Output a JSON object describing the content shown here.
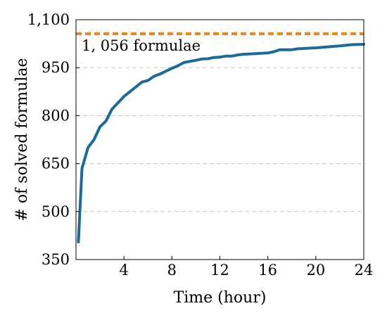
{
  "chart_data": {
    "type": "line",
    "xlabel": "Time (hour)",
    "ylabel": "# of solved formulae",
    "xlim": [
      0,
      24
    ],
    "ylim": [
      350,
      1100
    ],
    "x_ticks": [
      4,
      8,
      12,
      16,
      20,
      24
    ],
    "y_ticks": [
      350,
      500,
      650,
      800,
      950,
      1100
    ],
    "x_tick_labels": [
      "4",
      "8",
      "12",
      "16",
      "20",
      "24"
    ],
    "y_tick_labels": [
      "350",
      "500",
      "650",
      "800",
      "950",
      "1,100"
    ],
    "grid": "horizontal dashed",
    "series": [
      {
        "color": "#1a6a9a",
        "x": [
          0.2,
          0.5,
          1,
          1.5,
          2,
          2.5,
          3,
          4,
          5,
          5.5,
          6,
          6.5,
          7,
          8,
          8.5,
          9,
          10,
          10.5,
          11,
          11.5,
          12,
          12.5,
          13,
          13.5,
          14,
          15,
          16,
          16.5,
          17,
          18,
          18.5,
          19,
          20,
          21,
          22,
          23,
          24
        ],
        "y": [
          405,
          635,
          700,
          725,
          765,
          783,
          820,
          860,
          890,
          905,
          910,
          923,
          930,
          948,
          956,
          966,
          973,
          977,
          978,
          982,
          983,
          986,
          986,
          990,
          992,
          994,
          996,
          1000,
          1006,
          1006,
          1009,
          1010,
          1012,
          1015,
          1018,
          1022,
          1023
        ]
      }
    ],
    "reference_line": {
      "value": 1056,
      "label": "1, 056 formulae",
      "color": "#f08519"
    }
  }
}
